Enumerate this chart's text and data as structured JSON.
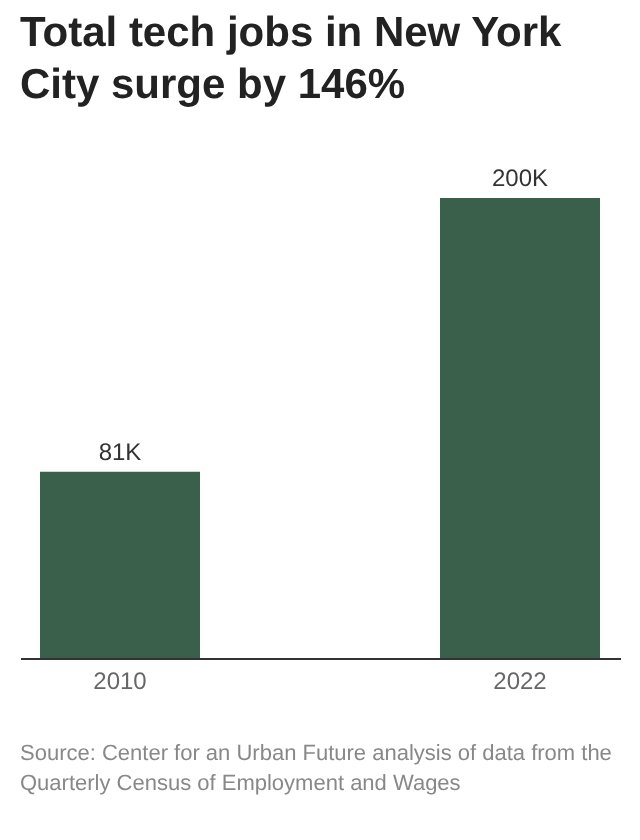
{
  "chart_data": {
    "type": "bar",
    "title": "Total tech jobs in New York City surge by 146%",
    "categories": [
      "2010",
      "2022"
    ],
    "values": [
      81000,
      200000
    ],
    "value_labels": [
      "81K",
      "200K"
    ],
    "color": "#3a5f4b",
    "annotations": [
      "Source: Center for an Urban Future analysis of data from the Quarterly Census of Employment and Wages"
    ]
  }
}
